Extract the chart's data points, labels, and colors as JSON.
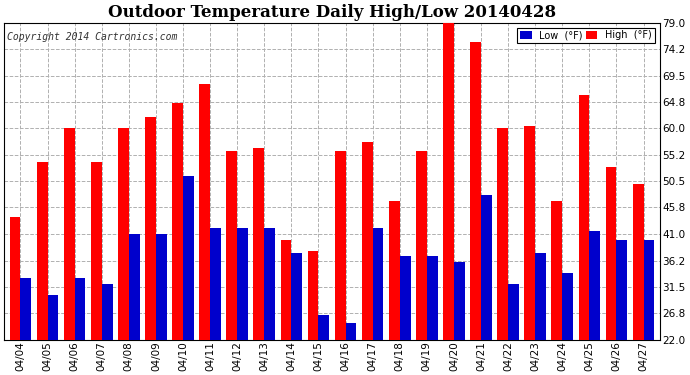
{
  "title": "Outdoor Temperature Daily High/Low 20140428",
  "copyright": "Copyright 2014 Cartronics.com",
  "dates": [
    "04/04",
    "04/05",
    "04/06",
    "04/07",
    "04/08",
    "04/09",
    "04/10",
    "04/11",
    "04/12",
    "04/13",
    "04/14",
    "04/15",
    "04/16",
    "04/17",
    "04/18",
    "04/19",
    "04/20",
    "04/21",
    "04/22",
    "04/23",
    "04/24",
    "04/25",
    "04/26",
    "04/27"
  ],
  "high": [
    44.0,
    54.0,
    60.0,
    54.0,
    60.0,
    62.0,
    64.5,
    68.0,
    56.0,
    56.5,
    40.0,
    38.0,
    56.0,
    57.5,
    47.0,
    56.0,
    79.0,
    75.5,
    60.0,
    60.5,
    47.0,
    66.0,
    53.0,
    50.0
  ],
  "low": [
    33.0,
    30.0,
    33.0,
    32.0,
    41.0,
    41.0,
    51.5,
    42.0,
    42.0,
    42.0,
    37.5,
    26.5,
    25.0,
    42.0,
    37.0,
    37.0,
    36.0,
    48.0,
    32.0,
    37.5,
    34.0,
    41.5,
    40.0,
    40.0
  ],
  "high_color": "#ff0000",
  "low_color": "#0000cc",
  "bg_color": "#ffffff",
  "grid_color": "#b0b0b0",
  "yticks": [
    22.0,
    26.8,
    31.5,
    36.2,
    41.0,
    45.8,
    50.5,
    55.2,
    60.0,
    64.8,
    69.5,
    74.2,
    79.0
  ],
  "ymin": 22.0,
  "ymax": 79.0,
  "title_fontsize": 12,
  "copyright_fontsize": 7,
  "tick_fontsize": 7.5
}
